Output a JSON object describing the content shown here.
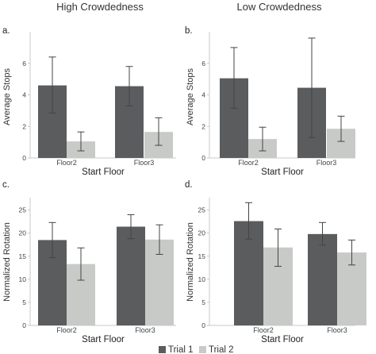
{
  "headers": {
    "left": "High Crowdedness",
    "right": "Low Crowdedness"
  },
  "legend": [
    {
      "name": "Trial 1",
      "color": "#5a5c5e"
    },
    {
      "name": "Trial 2",
      "color": "#c8cac8"
    }
  ],
  "chart_data": [
    {
      "id": "a",
      "panel_label": "a.",
      "type": "bar",
      "categories": [
        "Floor2",
        "Floor3"
      ],
      "series": [
        {
          "name": "Trial 1",
          "values": [
            4.6,
            4.55
          ],
          "error_low": [
            2.85,
            3.3
          ],
          "error_high": [
            6.4,
            5.8
          ]
        },
        {
          "name": "Trial 2",
          "values": [
            1.05,
            1.65
          ],
          "error_low": [
            0.45,
            0.8
          ],
          "error_high": [
            1.65,
            2.55
          ]
        }
      ],
      "xlabel": "Start Floor",
      "ylabel": "Average Stops",
      "ylim": [
        0,
        7.8
      ],
      "yticks": [
        0,
        2,
        4,
        6
      ],
      "grid": false
    },
    {
      "id": "b",
      "panel_label": "b.",
      "type": "bar",
      "categories": [
        "Floor2",
        "Floor3"
      ],
      "series": [
        {
          "name": "Trial 1",
          "values": [
            5.05,
            4.45
          ],
          "error_low": [
            3.15,
            1.3
          ],
          "error_high": [
            7.0,
            7.6
          ]
        },
        {
          "name": "Trial 2",
          "values": [
            1.2,
            1.85
          ],
          "error_low": [
            0.45,
            1.05
          ],
          "error_high": [
            1.95,
            2.65
          ]
        }
      ],
      "xlabel": "Start Floor",
      "ylabel": "Average Stops",
      "ylim": [
        0,
        7.8
      ],
      "yticks": [
        0,
        2,
        4,
        6
      ],
      "grid": false
    },
    {
      "id": "c",
      "panel_label": "c.",
      "type": "bar",
      "categories": [
        "Floor2",
        "Floor3"
      ],
      "series": [
        {
          "name": "Trial 1",
          "values": [
            18.5,
            21.4
          ],
          "error_low": [
            14.7,
            18.8
          ],
          "error_high": [
            22.3,
            24.0
          ]
        },
        {
          "name": "Trial 2",
          "values": [
            13.3,
            18.6
          ],
          "error_low": [
            9.8,
            15.4
          ],
          "error_high": [
            16.8,
            21.8
          ]
        }
      ],
      "xlabel": "Start Floor",
      "ylabel": "Normalized Rotation",
      "ylim": [
        0,
        27
      ],
      "yticks": [
        0,
        5,
        10,
        15,
        20,
        25
      ],
      "grid": false
    },
    {
      "id": "d",
      "panel_label": "d.",
      "type": "bar",
      "categories": [
        "Floor2",
        "Floor3"
      ],
      "series": [
        {
          "name": "Trial 1",
          "values": [
            22.6,
            19.8
          ],
          "error_low": [
            18.7,
            17.4
          ],
          "error_high": [
            26.6,
            22.3
          ]
        },
        {
          "name": "Trial 2",
          "values": [
            16.9,
            15.8
          ],
          "error_low": [
            12.8,
            13.1
          ],
          "error_high": [
            20.9,
            18.5
          ]
        }
      ],
      "xlabel": "Start Floor",
      "ylabel": "Normalized Rotation",
      "ylim": [
        0,
        27
      ],
      "yticks": [
        0,
        5,
        10,
        15,
        20,
        25
      ],
      "grid": false
    }
  ]
}
